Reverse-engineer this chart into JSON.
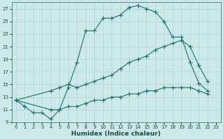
{
  "title": "",
  "xlabel": "Humidex (Indice chaleur)",
  "xlim": [
    -0.5,
    23.5
  ],
  "ylim": [
    9,
    28
  ],
  "xticks": [
    0,
    1,
    2,
    3,
    4,
    5,
    6,
    7,
    8,
    9,
    10,
    11,
    12,
    13,
    14,
    15,
    16,
    17,
    18,
    19,
    20,
    21,
    22,
    23
  ],
  "yticks": [
    9,
    11,
    13,
    15,
    17,
    19,
    21,
    23,
    25,
    27
  ],
  "bg_color": "#cce8e8",
  "grid_color": "#b0d4d4",
  "line_color": "#1a7070",
  "line1_x": [
    0,
    1,
    2,
    3,
    4,
    5,
    6,
    7,
    8,
    9,
    10,
    11,
    12,
    13,
    14,
    15,
    16,
    17,
    18,
    19,
    20,
    21,
    22
  ],
  "line1_y": [
    12.5,
    11.5,
    10.5,
    10.5,
    9.5,
    11.0,
    14.5,
    18.5,
    23.5,
    23.5,
    25.5,
    25.5,
    26.0,
    27.2,
    27.5,
    27.0,
    26.5,
    25.0,
    22.5,
    22.5,
    18.5,
    15.2,
    14.0
  ],
  "line2_x": [
    0,
    4,
    5,
    6,
    7,
    8,
    9,
    10,
    11,
    12,
    13,
    14,
    15,
    16,
    17,
    18,
    19,
    20,
    21,
    22
  ],
  "line2_y": [
    12.5,
    14.0,
    14.5,
    15.0,
    14.5,
    15.0,
    15.5,
    16.0,
    16.5,
    17.5,
    18.5,
    19.0,
    19.5,
    20.5,
    21.0,
    21.5,
    22.0,
    21.0,
    18.0,
    15.5
  ],
  "line3_x": [
    0,
    4,
    5,
    6,
    7,
    8,
    9,
    10,
    11,
    12,
    13,
    14,
    15,
    16,
    17,
    18,
    19,
    20,
    21,
    22
  ],
  "line3_y": [
    12.5,
    11.0,
    11.0,
    11.5,
    11.5,
    12.0,
    12.5,
    12.5,
    13.0,
    13.0,
    13.5,
    13.5,
    14.0,
    14.0,
    14.5,
    14.5,
    14.5,
    14.5,
    14.0,
    13.5
  ]
}
